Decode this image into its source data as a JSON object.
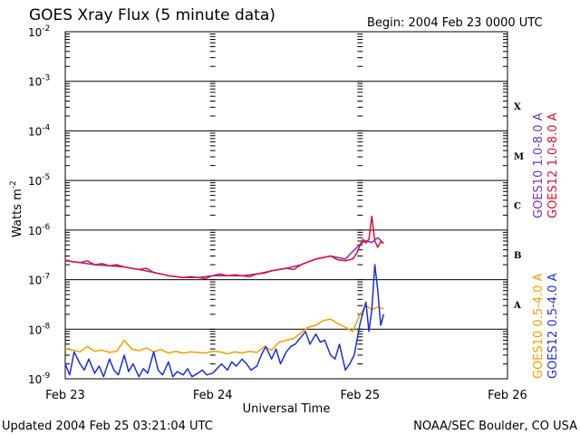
{
  "chart_data": {
    "type": "line",
    "title": "GOES Xray Flux (5 minute data)",
    "begin_label": "Begin:  2004 Feb 23 0000 UTC",
    "ylabel_base": "Watts m",
    "ylabel_exp": "-2",
    "xlabel": "Universal Time",
    "footer_left": "Updated 2004 Feb 25 03:21:04 UTC",
    "footer_right": "NOAA/SEC Boulder, CO USA",
    "y_scale": "log",
    "ylim": [
      1e-09,
      0.01
    ],
    "xlim_days": [
      0,
      3
    ],
    "x_ticks": [
      {
        "day": 0,
        "label": "Feb 23"
      },
      {
        "day": 1,
        "label": "Feb 24"
      },
      {
        "day": 2,
        "label": "Feb 25"
      },
      {
        "day": 3,
        "label": "Feb 26"
      }
    ],
    "y_ticks": [
      {
        "exp": -2,
        "base": "10",
        "sup": "-2"
      },
      {
        "exp": -3,
        "base": "10",
        "sup": "-3"
      },
      {
        "exp": -4,
        "base": "10",
        "sup": "-4"
      },
      {
        "exp": -5,
        "base": "10",
        "sup": "-5"
      },
      {
        "exp": -6,
        "base": "10",
        "sup": "-6"
      },
      {
        "exp": -7,
        "base": "10",
        "sup": "-7"
      },
      {
        "exp": -8,
        "base": "10",
        "sup": "-8"
      },
      {
        "exp": -9,
        "base": "10",
        "sup": "-9"
      }
    ],
    "grid": "horizontal lines at each decade",
    "flare_classes": [
      {
        "label": "X",
        "exp": -3.5
      },
      {
        "label": "M",
        "exp": -4.5
      },
      {
        "label": "C",
        "exp": -5.5
      },
      {
        "label": "B",
        "exp": -6.5
      },
      {
        "label": "A",
        "exp": -7.5
      }
    ],
    "legend": {
      "placement": "right, rotated",
      "long_band": [
        {
          "name": "GOES10 1.0-8.0 A",
          "color": "#7a2fb8"
        },
        {
          "name": "GOES12 1.0-8.0 A",
          "color": "#e0102a"
        }
      ],
      "short_band": [
        {
          "name": "GOES10 0.5-4.0 A",
          "color": "#f5a000"
        },
        {
          "name": "GOES12 0.5-4.0 A",
          "color": "#1a2ee0"
        }
      ]
    },
    "series": [
      {
        "name": "GOES10 1.0-8.0 A",
        "color": "#7a2fb8",
        "x": [
          0,
          0.1,
          0.2,
          0.3,
          0.4,
          0.5,
          0.6,
          0.7,
          0.8,
          0.9,
          1.0,
          1.1,
          1.2,
          1.3,
          1.4,
          1.5,
          1.6,
          1.7,
          1.8,
          1.9,
          2.0,
          2.04,
          2.08,
          2.12,
          2.16
        ],
        "y": [
          2.4e-07,
          2.2e-07,
          2e-07,
          1.9e-07,
          1.8e-07,
          1.6e-07,
          1.4e-07,
          1.2e-07,
          1.1e-07,
          1.1e-07,
          1.2e-07,
          1.2e-07,
          1.2e-07,
          1.3e-07,
          1.5e-07,
          1.7e-07,
          2e-07,
          2.6e-07,
          3e-07,
          2.6e-07,
          5.2e-07,
          6.1e-07,
          5.6e-07,
          7e-07,
          5.4e-07
        ]
      },
      {
        "name": "GOES12 1.0-8.0 A",
        "color": "#e0102a",
        "x": [
          0,
          0.05,
          0.1,
          0.15,
          0.2,
          0.25,
          0.3,
          0.35,
          0.4,
          0.45,
          0.5,
          0.55,
          0.6,
          0.65,
          0.7,
          0.75,
          0.8,
          0.85,
          0.9,
          0.95,
          1.0,
          1.05,
          1.1,
          1.15,
          1.2,
          1.25,
          1.3,
          1.35,
          1.4,
          1.45,
          1.5,
          1.55,
          1.6,
          1.65,
          1.7,
          1.75,
          1.8,
          1.85,
          1.9,
          1.95,
          1.98,
          2.0,
          2.02,
          2.04,
          2.06,
          2.08,
          2.1,
          2.12,
          2.14,
          2.16
        ],
        "y": [
          2.5e-07,
          2.3e-07,
          2.2e-07,
          2.4e-07,
          2e-07,
          2.1e-07,
          1.9e-07,
          2e-07,
          1.8e-07,
          1.7e-07,
          1.6e-07,
          1.7e-07,
          1.4e-07,
          1.3e-07,
          1.2e-07,
          1.15e-07,
          1.1e-07,
          1.15e-07,
          1.1e-07,
          1.05e-07,
          1.2e-07,
          1.3e-07,
          1.2e-07,
          1.25e-07,
          1.2e-07,
          1.15e-07,
          1.3e-07,
          1.35e-07,
          1.5e-07,
          1.6e-07,
          1.7e-07,
          1.6e-07,
          2e-07,
          2.3e-07,
          2.6e-07,
          2.8e-07,
          3e-07,
          2.5e-07,
          2.4e-07,
          2.6e-07,
          3.5e-07,
          5e-07,
          6.5e-07,
          5.5e-07,
          6.5e-07,
          1.9e-06,
          6e-07,
          4.5e-07,
          5.8e-07,
          5.4e-07
        ]
      },
      {
        "name": "GOES10 0.5-4.0 A",
        "color": "#f5a000",
        "x": [
          0,
          0.05,
          0.1,
          0.15,
          0.2,
          0.25,
          0.3,
          0.35,
          0.4,
          0.45,
          0.5,
          0.55,
          0.6,
          0.65,
          0.7,
          0.75,
          0.8,
          0.85,
          0.9,
          0.95,
          1.0,
          1.05,
          1.1,
          1.15,
          1.2,
          1.25,
          1.3,
          1.35,
          1.4,
          1.45,
          1.5,
          1.55,
          1.6,
          1.65,
          1.7,
          1.75,
          1.8,
          1.85,
          1.9,
          1.95,
          2.0,
          2.04,
          2.08,
          2.12,
          2.16
        ],
        "y": [
          4e-09,
          3.8e-09,
          3.5e-09,
          4.5e-09,
          3.6e-09,
          3.8e-09,
          3.4e-09,
          3.6e-09,
          6e-09,
          4e-09,
          3.7e-09,
          4.2e-09,
          3.5e-09,
          3.9e-09,
          3.3e-09,
          3.6e-09,
          3.3e-09,
          3.5e-09,
          3.4e-09,
          3.3e-09,
          3.6e-09,
          3.5e-09,
          3.2e-09,
          3.5e-09,
          3.3e-09,
          3.6e-09,
          3.4e-09,
          4.5e-09,
          3.8e-09,
          5.5e-09,
          6e-09,
          6.5e-09,
          8.5e-09,
          1.1e-08,
          1.2e-08,
          1.5e-08,
          1.6e-08,
          1.3e-08,
          1.1e-08,
          9e-09,
          2e-08,
          3e-08,
          2.5e-08,
          2.8e-08,
          2.6e-08
        ]
      },
      {
        "name": "GOES12 0.5-4.0 A",
        "color": "#1a2ee0",
        "x": [
          0,
          0.03,
          0.06,
          0.1,
          0.13,
          0.16,
          0.2,
          0.23,
          0.26,
          0.3,
          0.33,
          0.36,
          0.4,
          0.43,
          0.46,
          0.5,
          0.53,
          0.56,
          0.6,
          0.63,
          0.66,
          0.7,
          0.73,
          0.76,
          0.8,
          0.83,
          0.86,
          0.9,
          0.93,
          0.96,
          1.0,
          1.03,
          1.06,
          1.1,
          1.13,
          1.16,
          1.2,
          1.23,
          1.26,
          1.3,
          1.33,
          1.36,
          1.4,
          1.43,
          1.46,
          1.5,
          1.53,
          1.56,
          1.6,
          1.63,
          1.66,
          1.7,
          1.73,
          1.76,
          1.8,
          1.83,
          1.86,
          1.9,
          1.93,
          1.96,
          2.0,
          2.02,
          2.04,
          2.06,
          2.08,
          2.1,
          2.12,
          2.14,
          2.16
        ],
        "y": [
          2e-09,
          1.2e-09,
          3.5e-09,
          2e-09,
          1.5e-09,
          2.5e-09,
          1.3e-09,
          1.8e-09,
          1.1e-09,
          2.5e-09,
          1.5e-09,
          1.2e-09,
          3e-09,
          1.4e-09,
          2e-09,
          1.1e-09,
          1.6e-09,
          1.3e-09,
          3.5e-09,
          1.5e-09,
          1.2e-09,
          2.2e-09,
          1.1e-09,
          1.4e-09,
          1.2e-09,
          1.6e-09,
          1.1e-09,
          1.3e-09,
          1.5e-09,
          1.2e-09,
          1.3e-09,
          1.6e-09,
          2e-09,
          1.5e-09,
          2.2e-09,
          1.8e-09,
          2.5e-09,
          2e-09,
          1.5e-09,
          1.8e-09,
          3e-09,
          4.5e-09,
          2.5e-09,
          4e-09,
          2e-09,
          3.5e-09,
          4.5e-09,
          5e-09,
          7e-09,
          9e-09,
          5e-09,
          8e-09,
          5.5e-09,
          6e-09,
          3e-09,
          2.5e-09,
          5e-09,
          1.5e-09,
          2e-09,
          3e-09,
          1.3e-08,
          2.2e-08,
          3.5e-08,
          9e-09,
          2.5e-08,
          2e-07,
          6e-08,
          1.2e-08,
          2e-08
        ]
      }
    ]
  }
}
